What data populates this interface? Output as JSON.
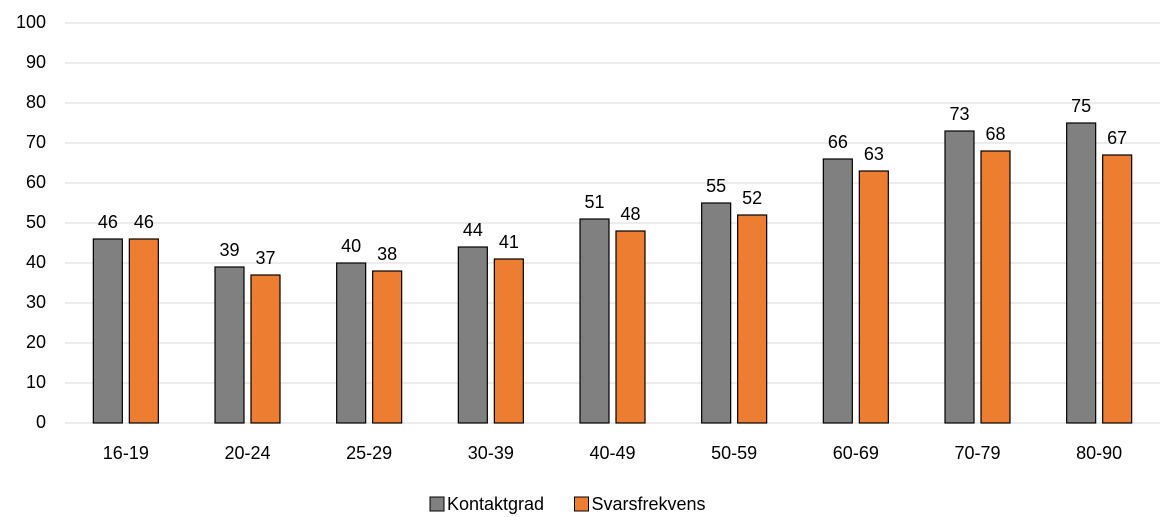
{
  "chart_data": {
    "type": "bar",
    "categories": [
      "16-19",
      "20-24",
      "25-29",
      "30-39",
      "40-49",
      "50-59",
      "60-69",
      "70-79",
      "80-90"
    ],
    "series": [
      {
        "name": "Kontaktgrad",
        "color": "#808080",
        "values": [
          46,
          39,
          40,
          44,
          51,
          55,
          66,
          73,
          75
        ]
      },
      {
        "name": "Svarsfrekvens",
        "color": "#ed7d31",
        "values": [
          46,
          37,
          38,
          41,
          48,
          52,
          63,
          68,
          67
        ]
      }
    ],
    "ylim": [
      0,
      100
    ],
    "yticks": [
      0,
      10,
      20,
      30,
      40,
      50,
      60,
      70,
      80,
      90,
      100
    ],
    "grid": true,
    "legend": "bottom"
  }
}
